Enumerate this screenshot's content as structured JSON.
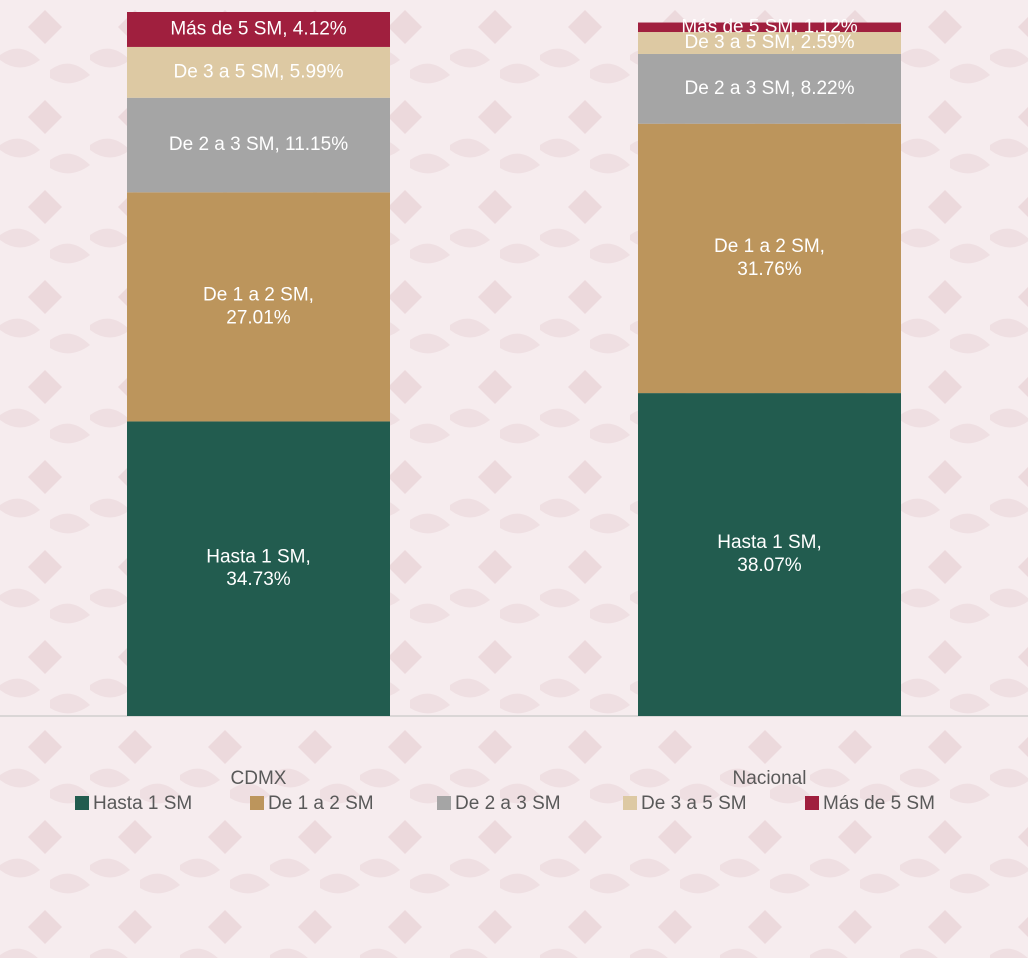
{
  "chart_data": {
    "type": "stacked_bar",
    "categories": [
      "CDMX",
      "Nacional"
    ],
    "series": [
      {
        "name": "Hasta 1 SM",
        "color": "#225c4f",
        "values": [
          34.73,
          38.07
        ],
        "value_labels": [
          "Hasta 1 SM, 34.73%",
          "Hasta 1 SM, 38.07%"
        ]
      },
      {
        "name": "De 1 a 2 SM",
        "color": "#bc955c",
        "values": [
          27.01,
          31.76
        ],
        "value_labels": [
          "De 1 a 2 SM, 27.01%",
          "De 1 a 2 SM, 31.76%"
        ]
      },
      {
        "name": "De 2 a 3 SM",
        "color": "#a5a5a5",
        "values": [
          11.15,
          8.22
        ],
        "value_labels": [
          "De 2 a 3 SM, 11.15%",
          "De 2 a 3 SM, 8.22%"
        ]
      },
      {
        "name": "De 3 a 5 SM",
        "color": "#ddc9a3",
        "values": [
          5.99,
          2.59
        ],
        "value_labels": [
          "De 3 a 5 SM, 5.99%",
          "De 3 a 5 SM, 2.59%"
        ]
      },
      {
        "name": "Más de 5 SM",
        "color": "#a01f3e",
        "values": [
          4.12,
          1.12
        ],
        "value_labels": [
          "Más de 5 SM, 4.12%",
          "Más de 5 SM, 1.12%"
        ]
      }
    ],
    "legend": "bottom"
  }
}
